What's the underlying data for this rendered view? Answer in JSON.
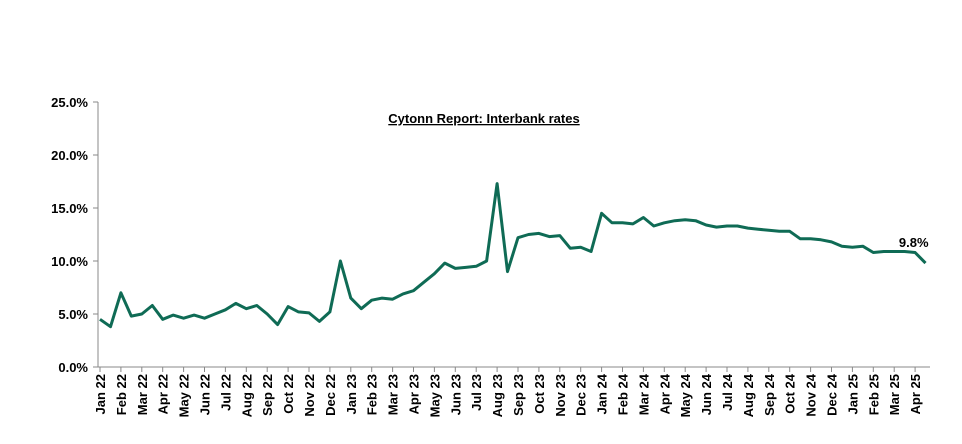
{
  "chart_data": {
    "type": "line",
    "title": "Cytonn Report: Interbank rates",
    "categories": [
      "Jan 22",
      null,
      "Feb 22",
      null,
      "Mar 22",
      null,
      "Apr 22",
      null,
      "May 22",
      null,
      "Jun 22",
      null,
      "Jul 22",
      null,
      "Aug 22",
      null,
      "Sep 22",
      null,
      "Oct 22",
      null,
      "Nov 22",
      null,
      "Dec 22",
      null,
      "Jan 23",
      null,
      "Feb 23",
      null,
      "Mar 23",
      null,
      "Apr 23",
      null,
      "May 23",
      null,
      "Jun 23",
      null,
      "Jul 23",
      null,
      "Aug 23",
      null,
      "Sep 23",
      null,
      "Oct 23",
      null,
      "Nov 23",
      null,
      "Dec 23",
      null,
      "Jan 24",
      null,
      "Feb 24",
      null,
      "Mar 24",
      null,
      "Apr 24",
      null,
      "May 24",
      null,
      "Jun 24",
      null,
      "Jul 24",
      null,
      "Aug 24",
      null,
      "Sep 24",
      null,
      "Oct 24",
      null,
      "Nov 24",
      null,
      "Dec 24",
      null,
      "Jan 25",
      null,
      "Feb 25",
      null,
      "Mar 25",
      null,
      "Apr 25",
      null
    ],
    "series": [
      {
        "name": "Interbank rate",
        "color": "#0f6b55",
        "values": [
          4.5,
          3.8,
          7.0,
          4.8,
          5.0,
          5.8,
          4.5,
          4.9,
          4.6,
          4.9,
          4.6,
          5.0,
          5.4,
          6.0,
          5.5,
          5.8,
          5.0,
          4.0,
          5.7,
          5.2,
          5.1,
          4.3,
          5.2,
          10.0,
          6.5,
          5.5,
          6.3,
          6.5,
          6.4,
          6.9,
          7.2,
          8.0,
          8.8,
          9.8,
          9.3,
          9.4,
          9.5,
          10.0,
          17.3,
          9.0,
          12.2,
          12.5,
          12.6,
          12.3,
          12.4,
          11.2,
          11.3,
          10.9,
          14.5,
          13.6,
          13.6,
          13.5,
          14.1,
          13.3,
          13.6,
          13.8,
          13.9,
          13.8,
          13.4,
          13.2,
          13.3,
          13.3,
          13.1,
          13.0,
          12.9,
          12.8,
          12.8,
          12.1,
          12.1,
          12.0,
          11.8,
          11.4,
          11.3,
          11.4,
          10.8,
          10.9,
          10.9,
          10.9,
          10.8,
          9.8
        ],
        "value_labels": [
          null,
          null,
          null,
          null,
          null,
          null,
          null,
          null,
          null,
          null,
          null,
          null,
          null,
          null,
          null,
          null,
          null,
          null,
          null,
          null,
          null,
          null,
          null,
          null,
          null,
          null,
          null,
          null,
          null,
          null,
          null,
          null,
          null,
          null,
          null,
          null,
          null,
          null,
          null,
          null,
          null,
          null,
          null,
          null,
          null,
          null,
          null,
          null,
          null,
          null,
          null,
          null,
          null,
          null,
          null,
          null,
          null,
          null,
          null,
          null,
          null,
          null,
          null,
          null,
          null,
          null,
          null,
          null,
          null,
          null,
          null,
          null,
          null,
          null,
          null,
          null,
          null,
          null,
          null,
          "9.8%"
        ]
      }
    ],
    "ylim": [
      0,
      25
    ],
    "yticks": [
      {
        "value": 0,
        "label": "0.0%"
      },
      {
        "value": 5,
        "label": "5.0%"
      },
      {
        "value": 10,
        "label": "10.0%"
      },
      {
        "value": 15,
        "label": "15.0%"
      },
      {
        "value": 20,
        "label": "20.0%"
      },
      {
        "value": 25,
        "label": "25.0%"
      }
    ],
    "grid": false
  }
}
